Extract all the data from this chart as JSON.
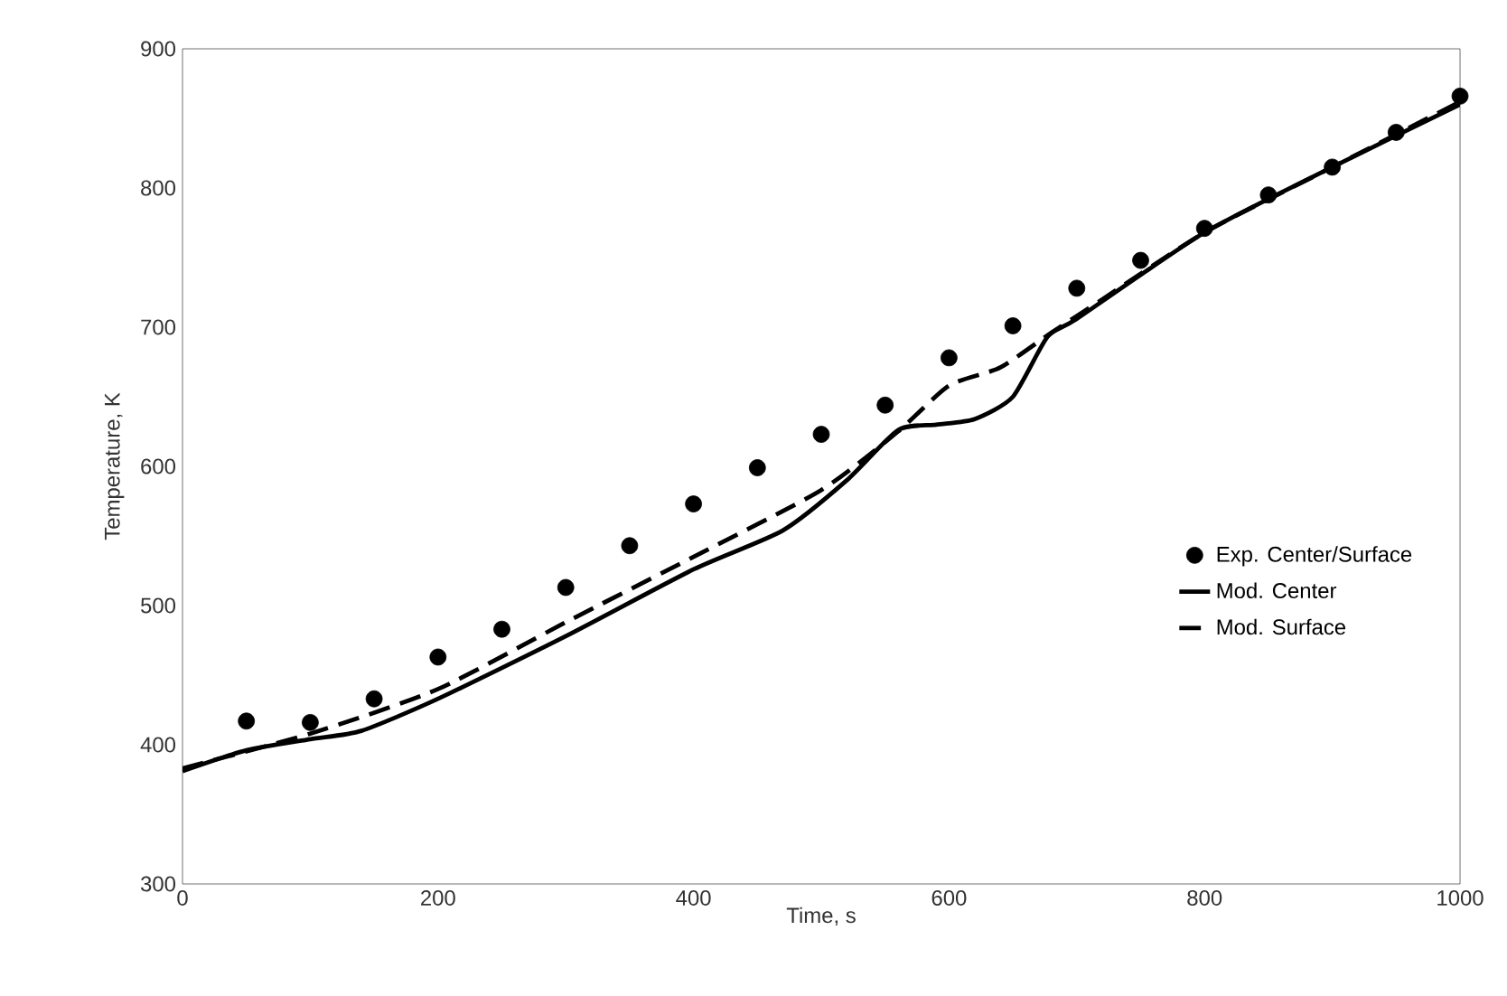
{
  "chart_data": {
    "type": "line",
    "xlabel": "Time, s",
    "ylabel": "Temperature, K",
    "xlim": [
      0,
      1000
    ],
    "ylim": [
      300,
      900
    ],
    "xticks": [
      0,
      200,
      400,
      600,
      800,
      1000
    ],
    "yticks": [
      300,
      400,
      500,
      600,
      700,
      800,
      900
    ],
    "grid": false,
    "legend": "right",
    "series": [
      {
        "name": "Exp. Center/Surface",
        "type": "scatter",
        "marker": "circle",
        "color": "#000000",
        "x": [
          50,
          100,
          150,
          200,
          250,
          300,
          350,
          400,
          450,
          500,
          550,
          600,
          650,
          700,
          750,
          800,
          850,
          900,
          950,
          1000
        ],
        "values": [
          417,
          416,
          433,
          463,
          483,
          513,
          543,
          573,
          599,
          623,
          644,
          678,
          701,
          728,
          748,
          771,
          795,
          815,
          840,
          866
        ]
      },
      {
        "name": "Mod. Center",
        "type": "line",
        "line_style": "solid",
        "color": "#000000",
        "x": [
          0,
          50,
          100,
          140,
          200,
          300,
          400,
          470,
          520,
          560,
          590,
          620,
          650,
          677,
          700,
          800,
          900,
          1000
        ],
        "values": [
          381,
          396,
          404,
          410,
          433,
          478,
          526,
          554,
          590,
          626,
          630,
          634,
          650,
          693,
          706,
          768,
          815,
          860
        ]
      },
      {
        "name": "Mod. Surface",
        "type": "line",
        "line_style": "dashed",
        "color": "#000000",
        "x": [
          0,
          100,
          200,
          300,
          400,
          500,
          560,
          600,
          640,
          680,
          720,
          800,
          900,
          1000
        ],
        "values": [
          383,
          408,
          440,
          488,
          535,
          583,
          625,
          658,
          671,
          696,
          720,
          768,
          815,
          862
        ]
      }
    ]
  }
}
